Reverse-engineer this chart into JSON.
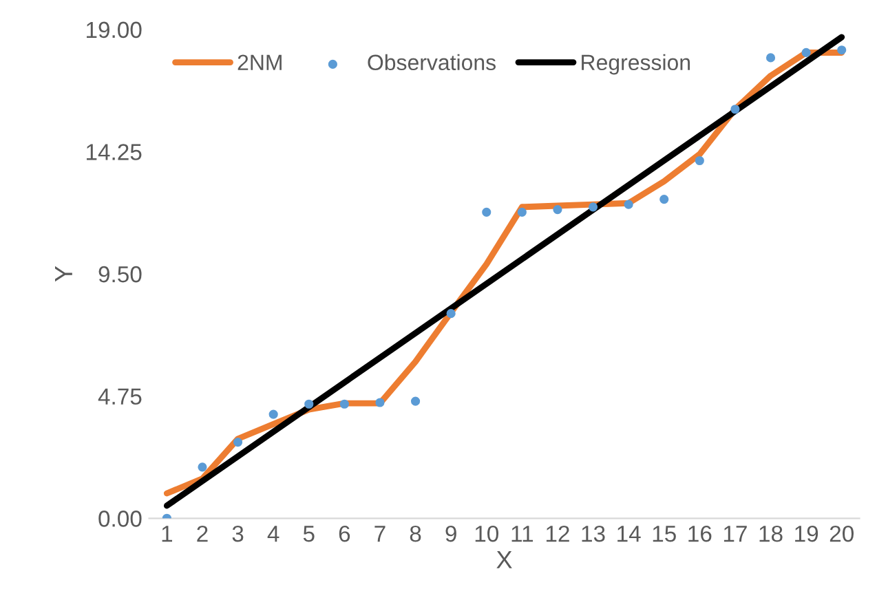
{
  "chart_data": {
    "type": "line",
    "xlabel": "X",
    "ylabel": "Y",
    "x": [
      1,
      2,
      3,
      4,
      5,
      6,
      7,
      8,
      9,
      10,
      11,
      12,
      13,
      14,
      15,
      16,
      17,
      18,
      19,
      20
    ],
    "series": [
      {
        "name": "2NM",
        "color": "#ed7d31",
        "values": [
          0.97,
          1.54,
          3.09,
          3.66,
          4.23,
          4.47,
          4.47,
          6.09,
          8.0,
          9.88,
          12.1,
          12.15,
          12.2,
          12.25,
          13.1,
          14.15,
          15.9,
          17.2,
          18.1,
          18.1
        ]
      },
      {
        "name": "Observations",
        "type": "scatter",
        "color": "#5b9bd5",
        "values": [
          0.0,
          1.99,
          2.96,
          4.04,
          4.44,
          4.44,
          4.5,
          4.55,
          7.96,
          11.9,
          11.9,
          12.0,
          12.1,
          12.2,
          12.4,
          13.9,
          15.9,
          17.9,
          18.1,
          18.2
        ]
      },
      {
        "name": "Regression",
        "color": "#000000",
        "x": [
          1,
          20
        ],
        "values": [
          0.49,
          18.7
        ]
      }
    ],
    "xlim": [
      0.5,
      20.5
    ],
    "xticks": [
      1,
      2,
      3,
      4,
      5,
      6,
      7,
      8,
      9,
      10,
      11,
      12,
      13,
      14,
      15,
      16,
      17,
      18,
      19,
      20
    ],
    "ylim": [
      0,
      19
    ],
    "yticks": [
      {
        "value": 0,
        "label": "0.00"
      },
      {
        "value": 4.75,
        "label": "4.75"
      },
      {
        "value": 9.5,
        "label": "9.50"
      },
      {
        "value": 14.25,
        "label": "14.25"
      },
      {
        "value": 19,
        "label": "19.00"
      }
    ],
    "grid": false,
    "legend": "top"
  }
}
